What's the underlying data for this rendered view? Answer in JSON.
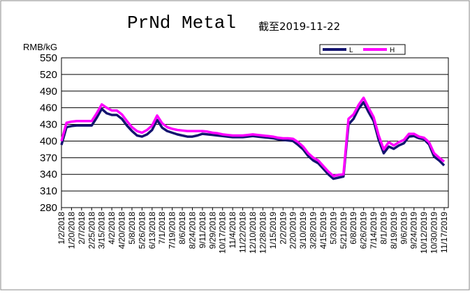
{
  "chart_data": {
    "type": "line",
    "title": "PrNd Metal",
    "subtitle": "截至2019-11-22",
    "y_label": "RMB/kG",
    "categories": [
      "1/2/2018",
      null,
      "1/20/2018",
      null,
      "2/7/2018",
      null,
      "2/25/2018",
      null,
      "3/15/2018",
      null,
      "4/2/2018",
      null,
      "4/20/2018",
      null,
      "5/8/2018",
      null,
      "5/26/2018",
      null,
      "6/13/2018",
      null,
      "7/1/2018",
      null,
      "7/19/2018",
      null,
      "8/6/2018",
      null,
      "8/24/2018",
      null,
      "9/11/2018",
      null,
      "9/29/2018",
      null,
      "10/17/2018",
      null,
      "11/4/2018",
      null,
      "11/22/2018",
      null,
      "12/10/2018",
      null,
      "12/28/2018",
      null,
      "1/15/2019",
      null,
      "2/2/2019",
      null,
      "2/20/2019",
      null,
      "3/10/2019",
      null,
      "3/28/2019",
      null,
      "4/15/2019",
      null,
      "5/3/2019",
      null,
      "5/21/2019",
      null,
      "6/8/2019",
      null,
      "6/26/2019",
      null,
      "7/14/2019",
      null,
      "8/1/2019",
      null,
      "8/19/2019",
      null,
      "9/6/2019",
      null,
      "9/24/2019",
      null,
      "10/12/2019",
      null,
      "10/30/2019",
      null,
      "11/17/2019"
    ],
    "series": [
      {
        "name": "L",
        "color": "#141470",
        "values": [
          393,
          425,
          427,
          428,
          428,
          428,
          428,
          442,
          458,
          450,
          447,
          447,
          440,
          428,
          418,
          410,
          408,
          412,
          420,
          438,
          424,
          418,
          415,
          412,
          410,
          408,
          408,
          410,
          413,
          412,
          411,
          410,
          409,
          408,
          407,
          407,
          407,
          408,
          409,
          408,
          407,
          406,
          405,
          403,
          402,
          401,
          400,
          393,
          385,
          373,
          365,
          360,
          350,
          340,
          332,
          334,
          336,
          430,
          440,
          458,
          470,
          452,
          436,
          402,
          378,
          390,
          386,
          392,
          396,
          408,
          409,
          405,
          403,
          394,
          372,
          365,
          356
        ]
      },
      {
        "name": "H",
        "color": "#ff00ff",
        "values": [
          400,
          433,
          435,
          436,
          436,
          436,
          436,
          450,
          466,
          460,
          455,
          455,
          448,
          436,
          425,
          418,
          415,
          420,
          428,
          446,
          432,
          425,
          422,
          420,
          419,
          418,
          418,
          418,
          418,
          417,
          415,
          414,
          412,
          411,
          410,
          410,
          410,
          411,
          412,
          411,
          410,
          409,
          408,
          406,
          405,
          405,
          404,
          398,
          390,
          378,
          370,
          365,
          355,
          345,
          337,
          339,
          340,
          440,
          448,
          465,
          478,
          460,
          443,
          410,
          385,
          398,
          392,
          398,
          402,
          413,
          413,
          408,
          406,
          398,
          378,
          370,
          363
        ]
      }
    ],
    "ylim": [
      280,
      550
    ],
    "yticks": [
      280,
      310,
      340,
      370,
      400,
      430,
      460,
      490,
      520,
      550
    ],
    "grid": true
  }
}
